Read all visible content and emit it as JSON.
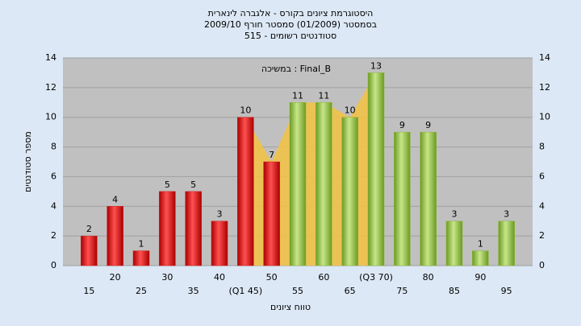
{
  "chart_data": {
    "type": "bar",
    "title": [
      "היסטוגרמת ציונים בקורס - אלגברה לינארית",
      "בסמסטר  (01/2009)  סמסטר חורף 2009/10",
      "סטודנטים רשומים - 515"
    ],
    "annotation": "במשיכה : Final_B",
    "x_label": "טווח ציונים",
    "y_label": "מספר סטודנטים",
    "categories": [
      "15",
      "20",
      "25",
      "30",
      "35",
      "40",
      "(Q1 45)",
      "50",
      "55",
      "60",
      "65",
      "(Q3 70)",
      "75",
      "80",
      "85",
      "90",
      "95"
    ],
    "values": [
      2,
      4,
      1,
      5,
      5,
      3,
      10,
      7,
      11,
      11,
      10,
      13,
      9,
      9,
      3,
      1,
      3
    ],
    "colors": [
      "#d42020",
      "#d42020",
      "#d42020",
      "#d42020",
      "#d42020",
      "#d42020",
      "#d42020",
      "#d42020",
      "#8fb83a",
      "#8fb83a",
      "#8fb83a",
      "#8fb83a",
      "#8fb83a",
      "#8fb83a",
      "#8fb83a",
      "#8fb83a",
      "#8fb83a"
    ],
    "area_color": "#f5c242",
    "ylim": [
      0,
      14
    ],
    "yticks": [
      0,
      2,
      4,
      6,
      8,
      10,
      12,
      14
    ],
    "grid": true
  }
}
